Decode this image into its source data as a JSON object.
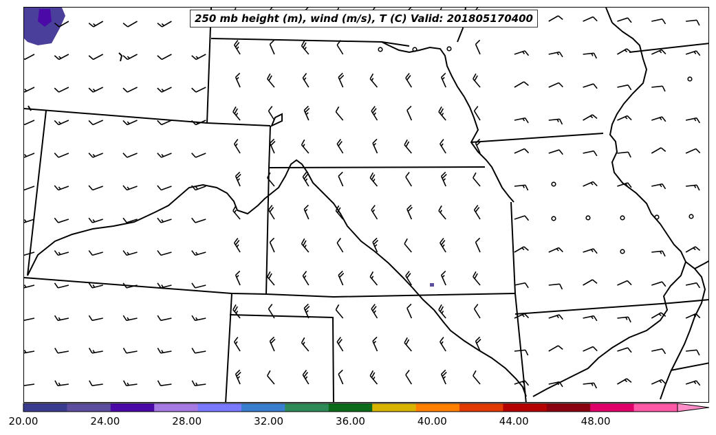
{
  "title": "250 mb height (m), wind (m/s), T (C) Valid: 201805170400",
  "colorbar": {
    "min": 20.0,
    "max": 52.0,
    "step": 2.0,
    "extend": "max",
    "tick_labels": [
      "20.00",
      "24.00",
      "28.00",
      "32.00",
      "36.00",
      "40.00",
      "44.00",
      "48.00"
    ],
    "colors": [
      "#3b3b8f",
      "#5c4d9e",
      "#4b0aa8",
      "#a77ae3",
      "#7a7aff",
      "#3a7fcf",
      "#2e8b57",
      "#0b6b1b",
      "#d8b400",
      "#ff8000",
      "#e03a00",
      "#b40000",
      "#8b0010",
      "#e0006a",
      "#ff5aa8",
      "#ff8ec8"
    ]
  },
  "map": {
    "field_shading_colors": [
      "#3b3b8f",
      "#5c4d9e",
      "#4b0aa8"
    ],
    "line_color": "#000000"
  }
}
